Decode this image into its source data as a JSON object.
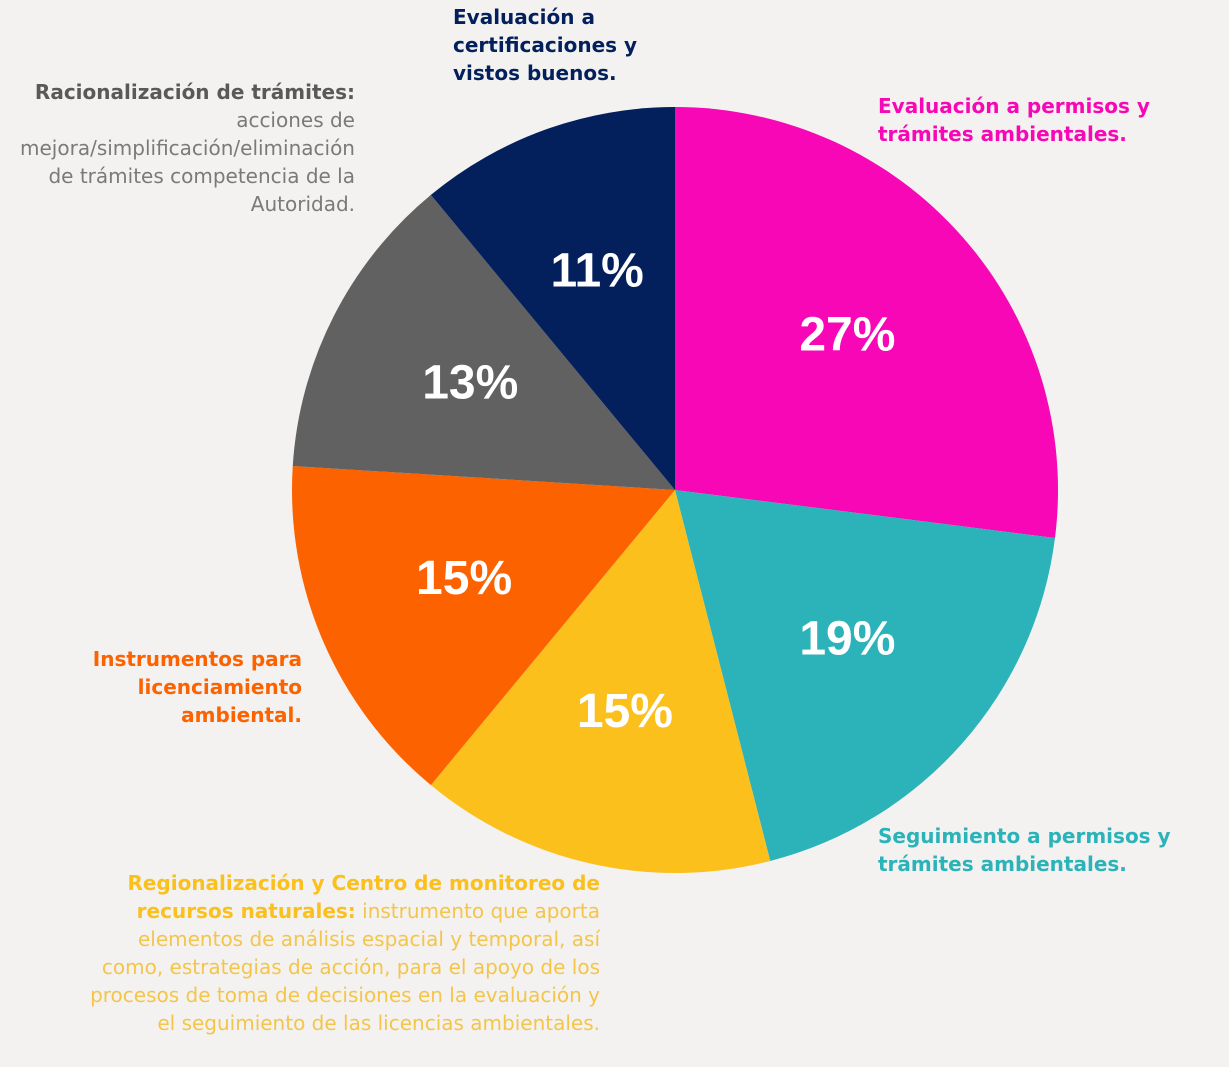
{
  "chart_data": {
    "type": "pie",
    "categories": [
      "Evaluación a permisos y trámites ambientales.",
      "Seguimiento a permisos y trámites ambientales.",
      "Regionalización y Centro de monitoreo de recursos naturales:",
      "Instrumentos para licenciamiento ambiental.",
      "Racionalización de trámites:",
      "Evaluación a certificaciones y vistos buenos."
    ],
    "descriptions": [
      null,
      null,
      "instrumento que aporta elementos de análisis espacial y temporal, así como, estrategias de acción, para el apoyo de los procesos de toma de decisiones en la evaluación y el seguimiento de las licencias ambientales.",
      null,
      "acciones de mejora/simplificación/eliminación de trámites competencia de la Autoridad.",
      null
    ],
    "values": [
      27,
      19,
      15,
      15,
      13,
      11
    ],
    "value_labels": [
      "27%",
      "19%",
      "15%",
      "15%",
      "13%",
      "11%"
    ],
    "colors": [
      "#f707b5",
      "#2bb3b9",
      "#fbc01c",
      "#fc6200",
      "#616161",
      "#03205c"
    ]
  }
}
